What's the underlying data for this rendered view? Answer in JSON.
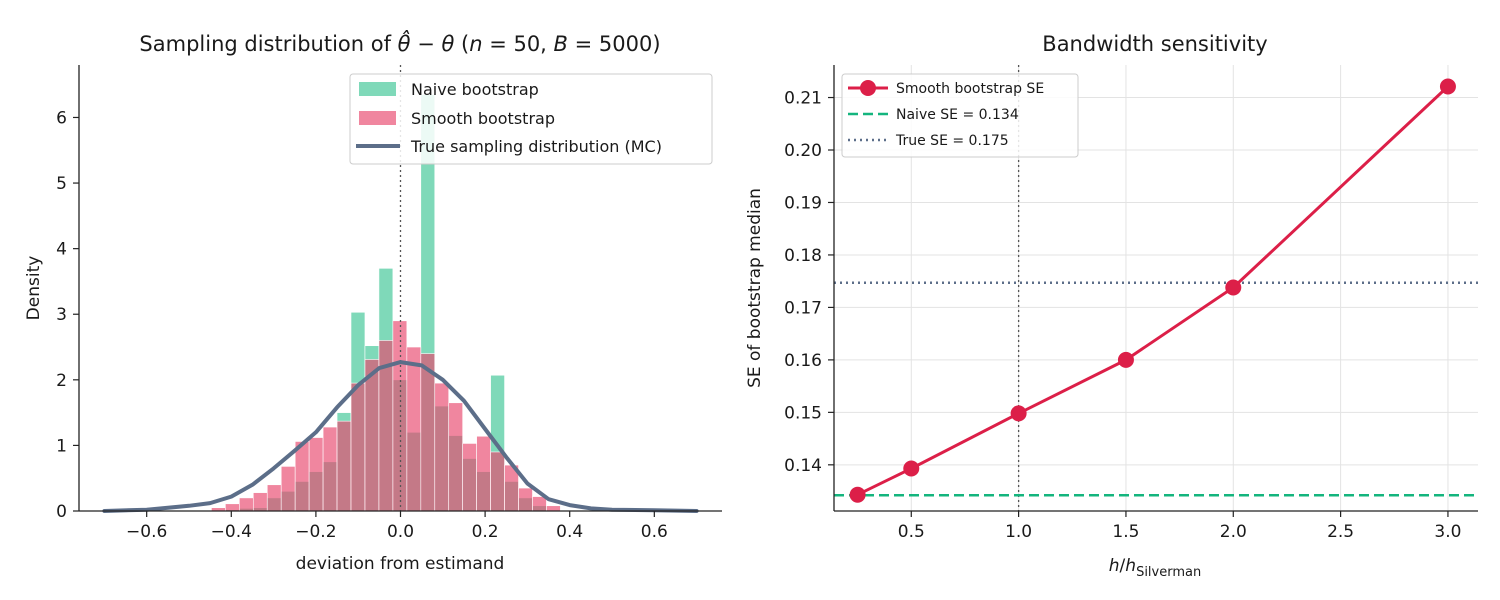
{
  "colors": {
    "naive": "#3cc594",
    "smooth": "#e8486e",
    "truth": "#5c6e89",
    "line": "#dc1f48",
    "naive_se": "#14b57e",
    "true_se": "#5c6e89"
  },
  "chart_data": [
    {
      "type": "histogram",
      "title": "Sampling distribution of θ̂ − θ (n = 50, B = 5000)",
      "title_parts": {
        "pre": "Sampling distribution of ",
        "theta_hat": "θ̂",
        "minus": " − ",
        "theta": "θ",
        "open": " (",
        "n": "n",
        "n_eq": " = 50, ",
        "b": "B",
        "b_eq": " = 5000)"
      },
      "xlabel": "deviation from estimand",
      "ylabel": "Density",
      "xlim": [
        -0.76,
        0.76
      ],
      "ylim": [
        0,
        6.8
      ],
      "xticks": [
        -0.6,
        -0.4,
        -0.2,
        0.0,
        0.2,
        0.4,
        0.6
      ],
      "yticks": [
        0,
        1,
        2,
        3,
        4,
        5,
        6
      ],
      "vline": 0.0,
      "grid": false,
      "legend_position": "top-right",
      "bin_width": 0.033,
      "series": [
        {
          "name": "Naive bootstrap",
          "kind": "bars",
          "bins": [
            [
              -0.414,
              0.02
            ],
            [
              -0.381,
              0.04
            ],
            [
              -0.348,
              0.05
            ],
            [
              -0.315,
              0.2
            ],
            [
              -0.282,
              0.3
            ],
            [
              -0.249,
              0.45
            ],
            [
              -0.216,
              0.6
            ],
            [
              -0.183,
              0.75
            ],
            [
              -0.15,
              1.5
            ],
            [
              -0.117,
              3.03
            ],
            [
              -0.084,
              2.52
            ],
            [
              -0.051,
              3.7
            ],
            [
              -0.018,
              2.0
            ],
            [
              0.015,
              1.2
            ],
            [
              0.048,
              6.35
            ],
            [
              0.081,
              1.6
            ],
            [
              0.114,
              1.15
            ],
            [
              0.147,
              0.8
            ],
            [
              0.18,
              0.6
            ],
            [
              0.213,
              2.07
            ],
            [
              0.246,
              0.45
            ],
            [
              0.279,
              0.2
            ],
            [
              0.312,
              0.08
            ]
          ]
        },
        {
          "name": "Smooth bootstrap",
          "kind": "bars",
          "bins": [
            [
              -0.447,
              0.05
            ],
            [
              -0.414,
              0.11
            ],
            [
              -0.381,
              0.2
            ],
            [
              -0.348,
              0.28
            ],
            [
              -0.315,
              0.4
            ],
            [
              -0.282,
              0.68
            ],
            [
              -0.249,
              1.06
            ],
            [
              -0.216,
              1.12
            ],
            [
              -0.183,
              1.28
            ],
            [
              -0.15,
              1.37
            ],
            [
              -0.117,
              1.95
            ],
            [
              -0.084,
              2.31
            ],
            [
              -0.051,
              2.6
            ],
            [
              -0.018,
              2.9
            ],
            [
              0.015,
              2.5
            ],
            [
              0.048,
              2.4
            ],
            [
              0.081,
              1.95
            ],
            [
              0.114,
              1.65
            ],
            [
              0.147,
              1.03
            ],
            [
              0.18,
              1.14
            ],
            [
              0.213,
              0.9
            ],
            [
              0.246,
              0.7
            ],
            [
              0.279,
              0.35
            ],
            [
              0.312,
              0.22
            ],
            [
              0.345,
              0.08
            ]
          ]
        },
        {
          "name": "True sampling distribution (MC)",
          "kind": "line",
          "points": [
            [
              -0.7,
              0.0
            ],
            [
              -0.6,
              0.02
            ],
            [
              -0.5,
              0.08
            ],
            [
              -0.45,
              0.12
            ],
            [
              -0.4,
              0.22
            ],
            [
              -0.35,
              0.4
            ],
            [
              -0.3,
              0.65
            ],
            [
              -0.25,
              0.92
            ],
            [
              -0.2,
              1.2
            ],
            [
              -0.15,
              1.58
            ],
            [
              -0.1,
              1.92
            ],
            [
              -0.05,
              2.18
            ],
            [
              0.0,
              2.27
            ],
            [
              0.05,
              2.22
            ],
            [
              0.1,
              2.0
            ],
            [
              0.15,
              1.68
            ],
            [
              0.2,
              1.25
            ],
            [
              0.25,
              0.82
            ],
            [
              0.3,
              0.42
            ],
            [
              0.35,
              0.18
            ],
            [
              0.4,
              0.09
            ],
            [
              0.45,
              0.04
            ],
            [
              0.5,
              0.02
            ],
            [
              0.6,
              0.01
            ],
            [
              0.7,
              0.0
            ]
          ]
        }
      ]
    },
    {
      "type": "line",
      "title": "Bandwidth sensitivity",
      "xlabel": "h/h_Silverman",
      "xlabel_parts": {
        "h": "h",
        "slash": "/",
        "h2": "h",
        "sub": "Silverman"
      },
      "ylabel": "SE of bootstrap median",
      "xlim": [
        0.14,
        3.14
      ],
      "ylim": [
        0.1312,
        0.2162
      ],
      "xticks": [
        0.5,
        1.0,
        1.5,
        2.0,
        2.5,
        3.0
      ],
      "xtick_labels": [
        "0.5",
        "1.0",
        "1.5",
        "2.0",
        "2.5",
        "3.0"
      ],
      "yticks": [
        0.14,
        0.15,
        0.16,
        0.17,
        0.18,
        0.19,
        0.2,
        0.21
      ],
      "ytick_labels": [
        "0.14",
        "0.15",
        "0.16",
        "0.17",
        "0.18",
        "0.19",
        "0.20",
        "0.21"
      ],
      "vline": 1.0,
      "grid": true,
      "legend_position": "top-left",
      "series": [
        {
          "name": "Smooth bootstrap SE",
          "x": [
            0.25,
            0.5,
            1.0,
            1.5,
            2.0,
            3.0
          ],
          "y": [
            0.1343,
            0.1393,
            0.1498,
            0.16,
            0.1738,
            0.2121
          ]
        }
      ],
      "hlines": [
        {
          "name": "Naive SE = 0.134",
          "y": 0.1342,
          "style": "dashed"
        },
        {
          "name": "True SE = 0.175",
          "y": 0.1747,
          "style": "dotted"
        }
      ]
    }
  ]
}
